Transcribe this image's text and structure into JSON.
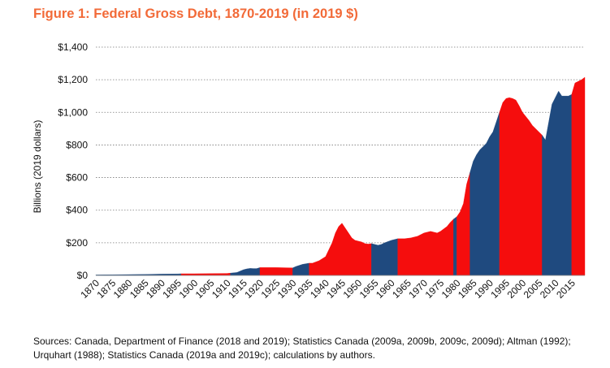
{
  "chart_data": {
    "type": "area",
    "title": "Figure 1: Federal Gross Debt, 1870-2019 (in 2019 $)",
    "ylabel": "Billions (2019 dollars)",
    "xlabel": "",
    "xlim": [
      1870,
      2019
    ],
    "ylim": [
      0,
      1400
    ],
    "yticks": [
      0,
      200,
      400,
      600,
      800,
      1000,
      1200,
      1400
    ],
    "ytick_labels": [
      "$0",
      "$200",
      "$400",
      "$600",
      "$800",
      "$1,000",
      "$1,200",
      "$1,400"
    ],
    "xticks": [
      1870,
      1875,
      1880,
      1885,
      1890,
      1895,
      1900,
      1905,
      1910,
      1915,
      1920,
      1925,
      1930,
      1935,
      1940,
      1945,
      1950,
      1955,
      1960,
      1965,
      1970,
      1975,
      1980,
      1985,
      1990,
      1995,
      2000,
      2005,
      2010,
      2015
    ],
    "grid": "horizontal dotted",
    "colors": {
      "blue": "#1f4a7f",
      "red": "#f50d0d"
    },
    "series": [
      {
        "x": [
          1870,
          1875,
          1880,
          1885,
          1890,
          1895,
          1896,
          1900,
          1905,
          1910,
          1911,
          1913,
          1915,
          1916,
          1917,
          1918,
          1919,
          1920,
          1925,
          1930,
          1931,
          1933,
          1935,
          1936,
          1938,
          1940,
          1942,
          1943,
          1944,
          1945,
          1946,
          1947,
          1948,
          1949,
          1950,
          1951,
          1952,
          1953,
          1954,
          1955,
          1956,
          1957,
          1958,
          1960,
          1962,
          1964,
          1966,
          1968,
          1970,
          1971,
          1972,
          1973,
          1974,
          1975,
          1976,
          1977,
          1978,
          1979,
          1980,
          1981,
          1982,
          1983,
          1984,
          1985,
          1986,
          1987,
          1988,
          1989,
          1990,
          1991,
          1992,
          1993,
          1994,
          1995,
          1996,
          1997,
          1998,
          1999,
          2000,
          2001,
          2002,
          2003,
          2004,
          2005,
          2006,
          2007,
          2008,
          2009,
          2010,
          2011,
          2012,
          2013,
          2014,
          2015,
          2016,
          2017,
          2018,
          2019
        ],
        "values": [
          3,
          4,
          5,
          6,
          8,
          9,
          10,
          10,
          11,
          12,
          14,
          18,
          35,
          40,
          43,
          42,
          42,
          48,
          48,
          46,
          55,
          68,
          75,
          75,
          90,
          115,
          200,
          260,
          300,
          320,
          290,
          260,
          230,
          215,
          210,
          205,
          195,
          192,
          195,
          190,
          185,
          190,
          200,
          215,
          225,
          225,
          230,
          240,
          260,
          265,
          270,
          265,
          260,
          270,
          285,
          300,
          325,
          345,
          360,
          390,
          440,
          560,
          630,
          700,
          740,
          770,
          790,
          810,
          850,
          880,
          940,
          1000,
          1060,
          1085,
          1090,
          1085,
          1075,
          1040,
          1000,
          975,
          950,
          920,
          900,
          880,
          860,
          830,
          940,
          1050,
          1090,
          1130,
          1100,
          1100,
          1100,
          1110,
          1180,
          1190,
          1200,
          1215
        ]
      }
    ],
    "color_regions": [
      {
        "from": 1870,
        "to": 1896,
        "color": "blue"
      },
      {
        "from": 1896,
        "to": 1911,
        "color": "red"
      },
      {
        "from": 1911,
        "to": 1920,
        "color": "blue"
      },
      {
        "from": 1920,
        "to": 1930,
        "color": "red"
      },
      {
        "from": 1930,
        "to": 1935,
        "color": "blue"
      },
      {
        "from": 1935,
        "to": 1954,
        "color": "red"
      },
      {
        "from": 1954,
        "to": 1962,
        "color": "blue"
      },
      {
        "from": 1962,
        "to": 1979,
        "color": "red"
      },
      {
        "from": 1979,
        "to": 1980,
        "color": "blue"
      },
      {
        "from": 1980,
        "to": 1984,
        "color": "red"
      },
      {
        "from": 1984,
        "to": 1993,
        "color": "blue"
      },
      {
        "from": 1993,
        "to": 2006,
        "color": "red"
      },
      {
        "from": 2006,
        "to": 2015,
        "color": "blue"
      },
      {
        "from": 2015,
        "to": 2019,
        "color": "red"
      }
    ]
  },
  "source_note": "Sources: Canada, Department of Finance (2018 and 2019); Statistics Canada (2009a, 2009b, 2009c, 2009d); Altman (1992); Urquhart (1988); Statistics Canada (2019a and 2019c); calculations by authors."
}
